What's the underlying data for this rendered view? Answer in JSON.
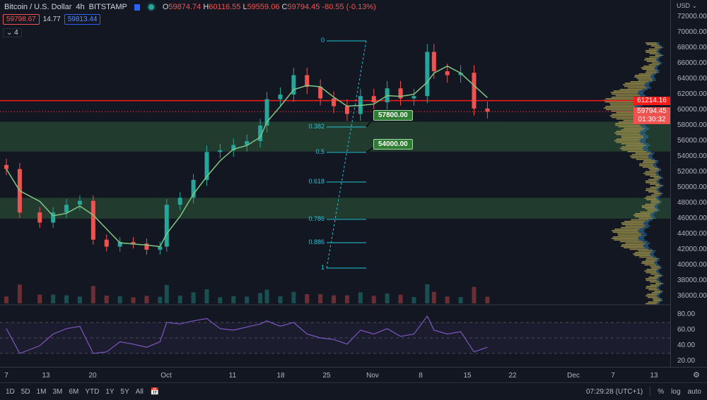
{
  "header": {
    "symbol": "Bitcoin / U.S. Dollar",
    "interval": "4h",
    "exchange": "BITSTAMP",
    "ohlc": {
      "o_label": "O",
      "o": "59874.74",
      "h_label": "H",
      "h": "60116.55",
      "l_label": "L",
      "l": "59559.06",
      "c_label": "C",
      "c": "59794.45",
      "change": "-80.55 (-0.13%)"
    },
    "bid": "59798.67",
    "spread": "14.77",
    "ask": "59813.44",
    "indicators_toggle": "4"
  },
  "price_axis": {
    "currency": "USD",
    "labels": [
      "72000.00",
      "70000.00",
      "68000.00",
      "66000.00",
      "64000.00",
      "62000.00",
      "60000.00",
      "58000.00",
      "56000.00",
      "54000.00",
      "52000.00",
      "50000.00",
      "48000.00",
      "46000.00",
      "44000.00",
      "42000.00",
      "40000.00",
      "38000.00",
      "36000.00"
    ],
    "line_price": "61214.16",
    "last_price": "59794.45",
    "countdown": "01:30:32",
    "rsi_labels": [
      "80.00",
      "60.00",
      "40.00",
      "20.00"
    ]
  },
  "time_axis": [
    "7",
    "13",
    "20",
    "Oct",
    "11",
    "18",
    "25",
    "Nov",
    "8",
    "15",
    "22",
    "Dec",
    "7",
    "13"
  ],
  "fib": {
    "levels": [
      "0",
      "0.382",
      "0.5",
      "0.618",
      "0.786",
      "0.886",
      "1"
    ]
  },
  "annotations": {
    "target1": "57800.00",
    "target2": "54000.00"
  },
  "zones": [
    {
      "from": 54650,
      "to": 58500
    },
    {
      "from": 46000,
      "to": 48700
    }
  ],
  "colors": {
    "bg": "#131722",
    "up": "#26a69a",
    "down": "#ef5350",
    "ma": "#81c784",
    "rsi": "#7e57c2",
    "hline": "#ff1a1a",
    "zone": "#2e5a3a"
  },
  "chart_data": {
    "type": "candlestick",
    "ylim": [
      35000,
      73000
    ],
    "dates": [
      "09-07",
      "09-09",
      "09-12",
      "09-14",
      "09-16",
      "09-18",
      "09-20",
      "09-22",
      "09-24",
      "09-26",
      "09-28",
      "09-30",
      "10-01",
      "10-03",
      "10-05",
      "10-07",
      "10-09",
      "10-11",
      "10-13",
      "10-15",
      "10-16",
      "10-18",
      "10-20",
      "10-22",
      "10-24",
      "10-26",
      "10-28",
      "10-30",
      "11-01",
      "11-03",
      "11-05",
      "11-07",
      "11-09",
      "11-10",
      "11-12",
      "11-14",
      "11-16",
      "11-18"
    ],
    "close": [
      52400,
      46800,
      45500,
      46800,
      47800,
      48300,
      43300,
      42400,
      43000,
      42800,
      42000,
      42400,
      47800,
      48700,
      51000,
      54600,
      54800,
      55500,
      56000,
      58000,
      61400,
      62000,
      64500,
      63000,
      61500,
      60500,
      59500,
      61800,
      61000,
      62800,
      61500,
      61800,
      67500,
      65000,
      64500,
      64800,
      60200,
      59794
    ],
    "rsi": [
      62,
      30,
      40,
      55,
      62,
      65,
      30,
      32,
      45,
      42,
      38,
      45,
      70,
      68,
      72,
      75,
      62,
      60,
      64,
      68,
      72,
      65,
      70,
      55,
      50,
      48,
      42,
      60,
      55,
      62,
      52,
      55,
      78,
      60,
      55,
      58,
      32,
      38
    ]
  },
  "bottom": {
    "ranges": [
      "1D",
      "5D",
      "1M",
      "3M",
      "6M",
      "YTD",
      "1Y",
      "5Y",
      "All"
    ],
    "clock": "07:29:28 (UTC+1)",
    "percent": "%",
    "log": "log",
    "auto": "auto"
  }
}
